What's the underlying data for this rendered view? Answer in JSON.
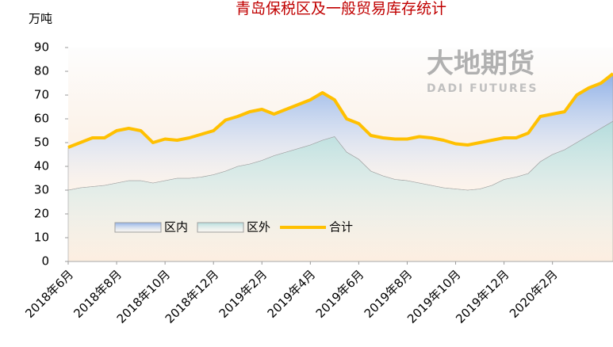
{
  "chart_data": {
    "type": "stacked_area_line",
    "title": "青岛保税区及一般贸易库存统计",
    "y_label": "万吨",
    "annotations": [
      "大地期货",
      "DADI FUTURES"
    ],
    "categories": [
      "2018年6月",
      null,
      null,
      null,
      "2018年8月",
      null,
      null,
      null,
      "2018年10月",
      null,
      null,
      null,
      "2018年12月",
      null,
      null,
      null,
      "2019年2月",
      null,
      null,
      null,
      "2019年4月",
      null,
      null,
      null,
      "2019年6月",
      null,
      null,
      null,
      "2019年8月",
      null,
      null,
      null,
      "2019年10月",
      null,
      null,
      null,
      "2019年12月",
      null,
      null,
      null,
      "2020年2月",
      null,
      null,
      null,
      null,
      null
    ],
    "series": [
      {
        "name": "区内",
        "kind": "area",
        "color": "#8fb0e6",
        "values": [
          18,
          19,
          20.5,
          20,
          22,
          22,
          21,
          17,
          17.5,
          16,
          17,
          18,
          18.5,
          21.5,
          21,
          22,
          21.5,
          17.5,
          18,
          18.5,
          19,
          20,
          15.5,
          14,
          15,
          15,
          16,
          17,
          17.5,
          19.5,
          20,
          20,
          19,
          19,
          19.5,
          19,
          17.5,
          16.5,
          17,
          19,
          17,
          16,
          20,
          20,
          19,
          20
        ]
      },
      {
        "name": "区外",
        "kind": "area",
        "color": "#b4dcdc",
        "values": [
          30,
          31,
          31.5,
          32,
          33,
          34,
          34,
          33,
          34,
          35,
          35,
          35.5,
          36.5,
          38,
          40,
          41,
          42.5,
          44.5,
          46,
          47.5,
          49,
          51,
          52.5,
          46,
          43,
          38,
          36,
          34.5,
          34,
          33,
          32,
          31,
          30.5,
          30,
          30.5,
          32,
          34.5,
          35.5,
          37,
          42,
          45,
          47,
          50,
          53,
          56,
          59
        ]
      },
      {
        "name": "合计",
        "kind": "line",
        "color": "#ffc000",
        "values": [
          48,
          50,
          52,
          52,
          55,
          56,
          55,
          50,
          51.5,
          51,
          52,
          53.5,
          55,
          59.5,
          61,
          63,
          64,
          62,
          64,
          66,
          68,
          71,
          68,
          60,
          58,
          53,
          52,
          51.5,
          51.5,
          52.5,
          52,
          51,
          49.5,
          49,
          50,
          51,
          52,
          52,
          54,
          61,
          62,
          63,
          70,
          73,
          75,
          79
        ]
      }
    ],
    "ylim": [
      0,
      90
    ],
    "yticks": [
      0,
      10,
      20,
      30,
      40,
      50,
      60,
      70,
      80,
      90
    ],
    "grid": false
  }
}
